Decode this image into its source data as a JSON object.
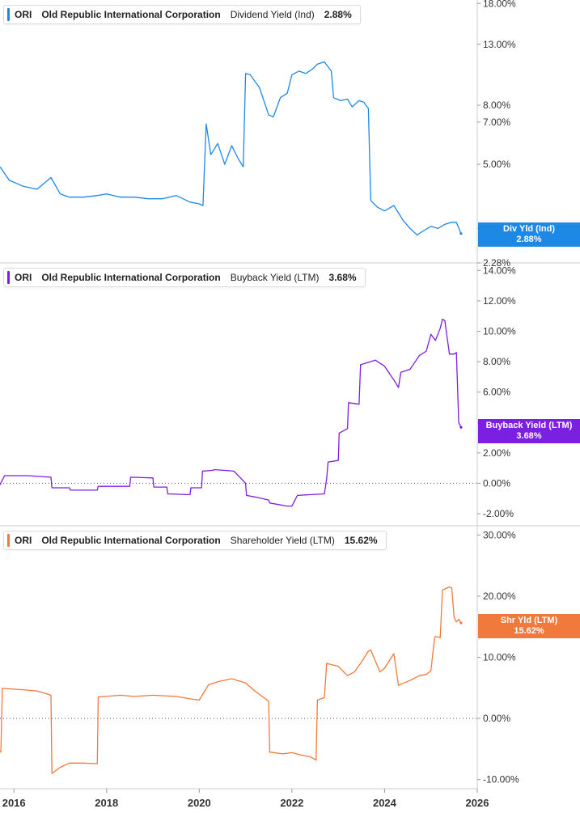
{
  "colors": {
    "dividend": "#1e88e5",
    "buyback": "#7b1fe0",
    "shareholder": "#f07a3c",
    "axis_text": "#333333",
    "grid": "#cccccc"
  },
  "x_axis": {
    "range": [
      2015.7,
      2026.0
    ],
    "ticks": [
      {
        "value": 2016,
        "label": "2016"
      },
      {
        "value": 2018,
        "label": "2018"
      },
      {
        "value": 2020,
        "label": "2020"
      },
      {
        "value": 2022,
        "label": "2022"
      },
      {
        "value": 2024,
        "label": "2024"
      },
      {
        "value": 2026,
        "label": "2026"
      }
    ]
  },
  "chart_data": [
    {
      "type": "line",
      "scale": "log",
      "ylim": [
        2.28,
        18.5
      ],
      "legend": {
        "ticker": "ORI",
        "company": "Old Republic International Corporation",
        "metric": "Dividend Yield (Ind)",
        "value": "2.88%"
      },
      "callout": {
        "label": "Div Yld (Ind)",
        "value": "2.88%"
      },
      "ticks": [
        {
          "value": 18,
          "label": "18.00%"
        },
        {
          "value": 13,
          "label": "13.00%"
        },
        {
          "value": 8,
          "label": "8.00%"
        },
        {
          "value": 7,
          "label": "7.00%"
        },
        {
          "value": 5,
          "label": "5.00%"
        },
        {
          "value": 3,
          "label": "3.00%"
        },
        {
          "value": 2.28,
          "label": "2.28%"
        }
      ],
      "series": [
        {
          "x": [
            2015.7,
            2015.9,
            2016.2,
            2016.5,
            2016.8,
            2017.0,
            2017.2,
            2017.5,
            2017.8,
            2018.0,
            2018.3,
            2018.6,
            2018.9,
            2019.2,
            2019.5,
            2019.8,
            2020.0,
            2020.08,
            2020.15,
            2020.25,
            2020.4,
            2020.55,
            2020.7,
            2020.85,
            2020.95,
            2021.0,
            2021.1,
            2021.3,
            2021.5,
            2021.6,
            2021.75,
            2021.9,
            2022.0,
            2022.15,
            2022.3,
            2022.45,
            2022.55,
            2022.7,
            2022.85,
            2022.9,
            2023.05,
            2023.2,
            2023.3,
            2023.45,
            2023.55,
            2023.65,
            2023.7,
            2023.85,
            2024.0,
            2024.2,
            2024.4,
            2024.55,
            2024.7,
            2024.85,
            2025.0,
            2025.15,
            2025.3,
            2025.45,
            2025.55,
            2025.65
          ],
          "values": [
            4.9,
            4.4,
            4.2,
            4.1,
            4.5,
            3.95,
            3.85,
            3.85,
            3.9,
            3.95,
            3.85,
            3.85,
            3.8,
            3.8,
            3.9,
            3.7,
            3.65,
            3.6,
            6.9,
            5.4,
            5.9,
            5.0,
            5.8,
            5.2,
            4.9,
            10.3,
            10.2,
            9.2,
            7.4,
            7.3,
            8.5,
            8.8,
            10.2,
            10.5,
            10.3,
            10.7,
            11.1,
            11.3,
            10.5,
            8.5,
            8.3,
            8.4,
            7.9,
            8.3,
            8.2,
            7.8,
            3.75,
            3.55,
            3.45,
            3.6,
            3.2,
            3.0,
            2.85,
            2.95,
            3.05,
            3.0,
            3.1,
            3.15,
            3.15,
            2.88
          ]
        }
      ]
    },
    {
      "type": "line",
      "ylim": [
        -2.8,
        14.5
      ],
      "legend": {
        "ticker": "ORI",
        "company": "Old Republic International Corporation",
        "metric": "Buyback Yield (LTM)",
        "value": "3.68%"
      },
      "callout": {
        "label": "Buyback Yield (LTM)",
        "value": "3.68%"
      },
      "ticks": [
        {
          "value": 14,
          "label": "14.00%"
        },
        {
          "value": 12,
          "label": "12.00%"
        },
        {
          "value": 10,
          "label": "10.00%"
        },
        {
          "value": 8,
          "label": "8.00%"
        },
        {
          "value": 6,
          "label": "6.00%"
        },
        {
          "value": 4,
          "label": "4.00%"
        },
        {
          "value": 2,
          "label": "2.00%"
        },
        {
          "value": 0,
          "label": "0.00%"
        },
        {
          "value": -2,
          "label": "-2.00%"
        }
      ],
      "series": [
        {
          "x": [
            2015.7,
            2015.8,
            2016.3,
            2016.8,
            2016.82,
            2017.2,
            2017.22,
            2017.8,
            2017.82,
            2018.5,
            2018.52,
            2019.0,
            2019.02,
            2019.3,
            2019.32,
            2019.8,
            2019.82,
            2020.05,
            2020.07,
            2020.3,
            2020.32,
            2020.75,
            2021.0,
            2021.02,
            2021.2,
            2021.5,
            2021.52,
            2021.9,
            2022.0,
            2022.1,
            2022.12,
            2022.7,
            2022.75,
            2022.78,
            2023.0,
            2023.02,
            2023.2,
            2023.22,
            2023.45,
            2023.48,
            2023.8,
            2024.0,
            2024.2,
            2024.3,
            2024.35,
            2024.55,
            2024.75,
            2024.9,
            2025.0,
            2025.1,
            2025.2,
            2025.25,
            2025.3,
            2025.4,
            2025.5,
            2025.55,
            2025.6,
            2025.65
          ],
          "values": [
            -0.1,
            0.5,
            0.5,
            0.4,
            -0.3,
            -0.3,
            -0.45,
            -0.45,
            -0.2,
            -0.2,
            0.4,
            0.35,
            -0.25,
            -0.25,
            -0.7,
            -0.75,
            -0.3,
            -0.3,
            0.8,
            0.85,
            0.9,
            0.8,
            0.0,
            -0.8,
            -0.9,
            -1.1,
            -1.3,
            -1.5,
            -1.5,
            -0.9,
            -0.8,
            -0.7,
            0.3,
            1.4,
            1.5,
            3.3,
            3.6,
            5.3,
            5.2,
            7.8,
            8.1,
            7.7,
            6.8,
            6.3,
            7.3,
            7.5,
            8.4,
            8.7,
            9.8,
            9.4,
            10.2,
            10.8,
            10.7,
            8.5,
            8.5,
            8.6,
            4.0,
            3.68
          ]
        }
      ]
    },
    {
      "type": "line",
      "ylim": [
        -11.5,
        31.5
      ],
      "legend": {
        "ticker": "ORI",
        "company": "Old Republic International Corporation",
        "metric": "Shareholder Yield (LTM)",
        "value": "15.62%"
      },
      "callout": {
        "label": "Shr Yld (LTM)",
        "value": "15.62%"
      },
      "ticks": [
        {
          "value": 30,
          "label": "30.00%"
        },
        {
          "value": 20,
          "label": "20.00%"
        },
        {
          "value": 10,
          "label": "10.00%"
        },
        {
          "value": 0,
          "label": "0.00%"
        },
        {
          "value": -10,
          "label": "-10.00%"
        }
      ],
      "series": [
        {
          "x": [
            2015.7,
            2015.72,
            2015.75,
            2016.2,
            2016.5,
            2016.8,
            2016.82,
            2017.0,
            2017.2,
            2017.5,
            2017.8,
            2017.82,
            2018.3,
            2018.6,
            2019.0,
            2019.5,
            2019.8,
            2020.0,
            2020.2,
            2020.4,
            2020.7,
            2021.0,
            2021.2,
            2021.5,
            2021.52,
            2021.8,
            2022.0,
            2022.2,
            2022.4,
            2022.52,
            2022.55,
            2022.7,
            2022.75,
            2023.0,
            2023.2,
            2023.35,
            2023.5,
            2023.65,
            2023.7,
            2023.9,
            2024.0,
            2024.2,
            2024.3,
            2024.35,
            2024.55,
            2024.75,
            2024.9,
            2025.0,
            2025.08,
            2025.1,
            2025.2,
            2025.25,
            2025.4,
            2025.45,
            2025.5,
            2025.55,
            2025.6,
            2025.65
          ],
          "values": [
            -5.3,
            -5.5,
            4.9,
            4.7,
            4.5,
            3.8,
            -9.0,
            -8.0,
            -7.3,
            -7.3,
            -7.4,
            3.5,
            3.8,
            3.6,
            3.8,
            3.6,
            3.2,
            3.0,
            5.5,
            6.0,
            6.5,
            5.8,
            4.5,
            2.8,
            -5.5,
            -5.8,
            -5.6,
            -6.0,
            -6.3,
            -6.8,
            3.0,
            3.4,
            9.0,
            8.5,
            7.0,
            7.6,
            9.2,
            11.0,
            11.2,
            7.6,
            8.2,
            10.6,
            5.4,
            5.6,
            6.2,
            7.0,
            7.2,
            7.8,
            13.2,
            13.4,
            13.2,
            21.0,
            21.5,
            21.3,
            16.5,
            15.8,
            16.2,
            15.62
          ]
        }
      ]
    }
  ]
}
